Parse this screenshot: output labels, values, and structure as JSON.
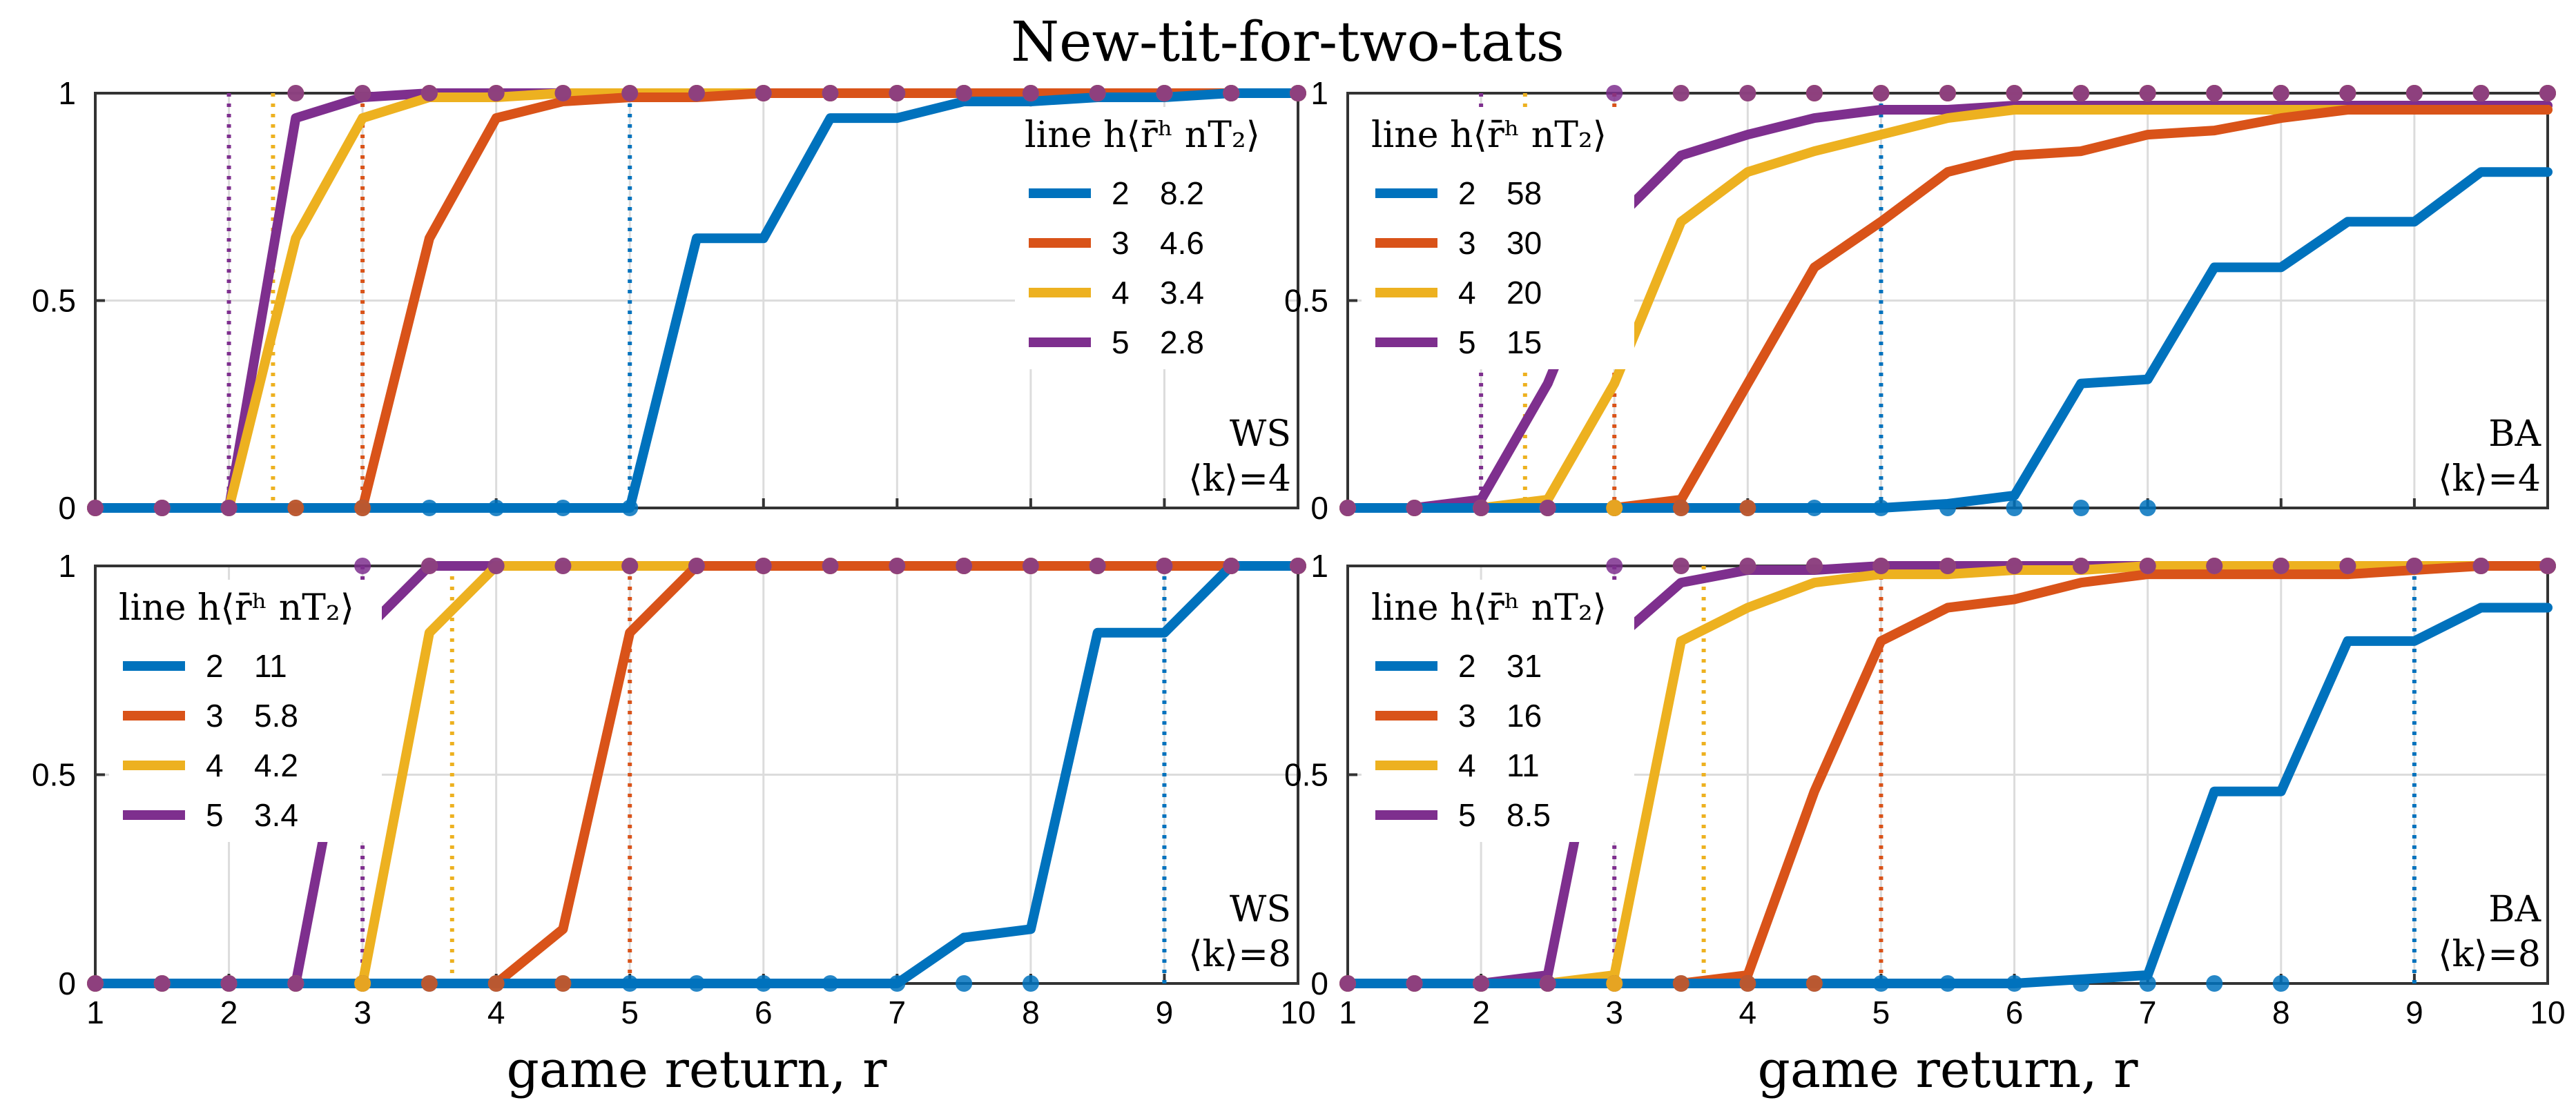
{
  "figure_title": "New-tit-for-two-tats",
  "colors": {
    "h2": "#0072BD",
    "h3": "#D95319",
    "h4": "#EDB120",
    "h5": "#7E2F8E",
    "grid": "#dcdcdc",
    "axis": "#333333"
  },
  "chart_data": [
    {
      "type": "line",
      "id": "ws_k4",
      "title": "",
      "xlabel": "",
      "ylabel": "",
      "xlim": [
        1,
        10
      ],
      "ylim": [
        0,
        1
      ],
      "xticks": [
        1,
        2,
        3,
        4,
        5,
        6,
        7,
        8,
        9,
        10
      ],
      "yticks": [
        0,
        0.5,
        1
      ],
      "ytick_labels": [
        "0",
        "0.5",
        "1"
      ],
      "show_xtick_labels": false,
      "legend_header": "line h⟨r̄ʰ nT₂⟩",
      "legend_position": "top-right",
      "annotation": [
        "WS",
        "⟨k⟩=4"
      ],
      "annotation_position": "bottom-right",
      "series": [
        {
          "name": "2",
          "h": 2,
          "value_label": "8.2",
          "vline": 5,
          "x": [
            1,
            1.5,
            2,
            2.5,
            3,
            3.5,
            4,
            4.5,
            5,
            5.5,
            6,
            6.5,
            7,
            7.5,
            8,
            8.5,
            9,
            9.5,
            10
          ],
          "y": [
            0,
            0,
            0,
            0,
            0,
            0,
            0,
            0,
            0,
            0.65,
            0.65,
            0.94,
            0.94,
            0.98,
            0.98,
            0.99,
            0.99,
            1,
            1
          ]
        },
        {
          "name": "3",
          "h": 3,
          "value_label": "4.6",
          "vline": 3,
          "x": [
            1,
            1.5,
            2,
            2.5,
            3,
            3.5,
            4,
            4.5,
            5,
            5.5,
            6,
            6.5,
            7,
            7.5,
            8,
            8.5,
            9,
            9.5,
            10
          ],
          "y": [
            0,
            0,
            0,
            0,
            0,
            0.65,
            0.94,
            0.98,
            0.99,
            0.99,
            1,
            1,
            1,
            1,
            1,
            1,
            1,
            1,
            1
          ]
        },
        {
          "name": "4",
          "h": 4,
          "value_label": "3.4",
          "vline": 2.33,
          "x": [
            1,
            1.5,
            2,
            2.5,
            3,
            3.5,
            4,
            4.5,
            5,
            5.5,
            6,
            6.5,
            7,
            7.5,
            8,
            8.5,
            9,
            9.5,
            10
          ],
          "y": [
            0,
            0,
            0,
            0.65,
            0.94,
            0.99,
            0.99,
            1,
            1,
            1,
            1,
            1,
            1,
            1,
            1,
            1,
            1,
            1,
            1
          ]
        },
        {
          "name": "5",
          "h": 5,
          "value_label": "2.8",
          "vline": 2,
          "x": [
            1,
            1.5,
            2,
            2.5,
            3,
            3.5,
            4,
            4.5,
            5,
            5.5,
            6,
            6.5,
            7,
            7.5,
            8,
            8.5,
            9,
            9.5,
            10
          ],
          "y": [
            0,
            0,
            0,
            0.94,
            0.99,
            1,
            1,
            1,
            1,
            1,
            1,
            1,
            1,
            1,
            1,
            1,
            1,
            1,
            1
          ]
        }
      ]
    },
    {
      "type": "line",
      "id": "ba_k4",
      "title": "",
      "xlabel": "",
      "ylabel": "",
      "xlim": [
        1,
        10
      ],
      "ylim": [
        0,
        1
      ],
      "xticks": [
        1,
        2,
        3,
        4,
        5,
        6,
        7,
        8,
        9,
        10
      ],
      "yticks": [
        0,
        0.5,
        1
      ],
      "ytick_labels": [
        "0",
        "0.5",
        "1"
      ],
      "show_xtick_labels": false,
      "legend_header": "line h⟨r̄ʰ nT₂⟩",
      "legend_position": "top-left",
      "annotation": [
        "BA",
        "⟨k⟩=4"
      ],
      "annotation_position": "bottom-right",
      "series": [
        {
          "name": "2",
          "h": 2,
          "value_label": "58",
          "vline": 5,
          "x": [
            1,
            1.5,
            2,
            2.5,
            3,
            3.5,
            4,
            4.5,
            5,
            5.5,
            6,
            6.5,
            7,
            7.5,
            8,
            8.5,
            9,
            9.5,
            10
          ],
          "y": [
            0,
            0,
            0,
            0,
            0,
            0,
            0,
            0,
            0,
            0.01,
            0.03,
            0.3,
            0.31,
            0.58,
            0.58,
            0.69,
            0.69,
            0.81,
            0.81
          ]
        },
        {
          "name": "3",
          "h": 3,
          "value_label": "30",
          "vline": 3,
          "x": [
            1,
            1.5,
            2,
            2.5,
            3,
            3.5,
            4,
            4.5,
            5,
            5.5,
            6,
            6.5,
            7,
            7.5,
            8,
            8.5,
            9,
            9.5,
            10
          ],
          "y": [
            0,
            0,
            0,
            0,
            0,
            0.02,
            0.3,
            0.58,
            0.69,
            0.81,
            0.85,
            0.86,
            0.9,
            0.91,
            0.94,
            0.96,
            0.96,
            0.96,
            0.96
          ]
        },
        {
          "name": "4",
          "h": 4,
          "value_label": "20",
          "vline": 2.33,
          "x": [
            1,
            1.5,
            2,
            2.5,
            3,
            3.5,
            4,
            4.5,
            5,
            5.5,
            6,
            6.5,
            7,
            7.5,
            8,
            8.5,
            9,
            9.5,
            10
          ],
          "y": [
            0,
            0,
            0,
            0.02,
            0.3,
            0.69,
            0.81,
            0.86,
            0.9,
            0.94,
            0.96,
            0.96,
            0.96,
            0.96,
            0.96,
            0.96,
            0.96,
            0.96,
            0.96
          ]
        },
        {
          "name": "5",
          "h": 5,
          "value_label": "15",
          "vline": 2,
          "x": [
            1,
            1.5,
            2,
            2.5,
            3,
            3.5,
            4,
            4.5,
            5,
            5.5,
            6,
            6.5,
            7,
            7.5,
            8,
            8.5,
            9,
            9.5,
            10
          ],
          "y": [
            0,
            0,
            0.02,
            0.3,
            0.69,
            0.85,
            0.9,
            0.94,
            0.96,
            0.96,
            0.97,
            0.97,
            0.97,
            0.97,
            0.97,
            0.97,
            0.97,
            0.97,
            0.97
          ]
        }
      ]
    },
    {
      "type": "line",
      "id": "ws_k8",
      "title": "",
      "xlabel": "game return, r",
      "ylabel": "",
      "xlim": [
        1,
        10
      ],
      "ylim": [
        0,
        1
      ],
      "xticks": [
        1,
        2,
        3,
        4,
        5,
        6,
        7,
        8,
        9,
        10
      ],
      "yticks": [
        0,
        0.5,
        1
      ],
      "ytick_labels": [
        "0",
        "0.5",
        "1"
      ],
      "show_xtick_labels": true,
      "legend_header": "line h⟨r̄ʰ nT₂⟩",
      "legend_position": "top-left",
      "annotation": [
        "WS",
        "⟨k⟩=8"
      ],
      "annotation_position": "bottom-right",
      "series": [
        {
          "name": "2",
          "h": 2,
          "value_label": "11",
          "vline": 9,
          "x": [
            1,
            1.5,
            2,
            2.5,
            3,
            3.5,
            4,
            4.5,
            5,
            5.5,
            6,
            6.5,
            7,
            7.5,
            8,
            8.5,
            9,
            9.5,
            10
          ],
          "y": [
            0,
            0,
            0,
            0,
            0,
            0,
            0,
            0,
            0,
            0,
            0,
            0,
            0,
            0.11,
            0.13,
            0.84,
            0.84,
            1,
            1
          ]
        },
        {
          "name": "3",
          "h": 3,
          "value_label": "5.8",
          "vline": 5,
          "x": [
            1,
            1.5,
            2,
            2.5,
            3,
            3.5,
            4,
            4.5,
            5,
            5.5,
            6,
            6.5,
            7,
            7.5,
            8,
            8.5,
            9,
            9.5,
            10
          ],
          "y": [
            0,
            0,
            0,
            0,
            0,
            0,
            0,
            0.13,
            0.84,
            1,
            1,
            1,
            1,
            1,
            1,
            1,
            1,
            1,
            1
          ]
        },
        {
          "name": "4",
          "h": 4,
          "value_label": "4.2",
          "vline": 3.67,
          "x": [
            1,
            1.5,
            2,
            2.5,
            3,
            3.5,
            4,
            4.5,
            5,
            5.5,
            6,
            6.5,
            7,
            7.5,
            8,
            8.5,
            9,
            9.5,
            10
          ],
          "y": [
            0,
            0,
            0,
            0,
            0,
            0.84,
            1,
            1,
            1,
            1,
            1,
            1,
            1,
            1,
            1,
            1,
            1,
            1,
            1
          ]
        },
        {
          "name": "5",
          "h": 5,
          "value_label": "3.4",
          "vline": 3,
          "x": [
            1,
            1.5,
            2,
            2.5,
            3,
            3.5,
            4,
            4.5,
            5,
            5.5,
            6,
            6.5,
            7,
            7.5,
            8,
            8.5,
            9,
            9.5,
            10
          ],
          "y": [
            0,
            0,
            0,
            0,
            0.84,
            1,
            1,
            1,
            1,
            1,
            1,
            1,
            1,
            1,
            1,
            1,
            1,
            1,
            1
          ]
        }
      ]
    },
    {
      "type": "line",
      "id": "ba_k8",
      "title": "",
      "xlabel": "game return, r",
      "ylabel": "",
      "xlim": [
        1,
        10
      ],
      "ylim": [
        0,
        1
      ],
      "xticks": [
        1,
        2,
        3,
        4,
        5,
        6,
        7,
        8,
        9,
        10
      ],
      "yticks": [
        0,
        0.5,
        1
      ],
      "ytick_labels": [
        "0",
        "0.5",
        "1"
      ],
      "show_xtick_labels": true,
      "legend_header": "line h⟨r̄ʰ nT₂⟩",
      "legend_position": "top-left",
      "annotation": [
        "BA",
        "⟨k⟩=8"
      ],
      "annotation_position": "bottom-right",
      "series": [
        {
          "name": "2",
          "h": 2,
          "value_label": "31",
          "vline": 9,
          "x": [
            1,
            1.5,
            2,
            2.5,
            3,
            3.5,
            4,
            4.5,
            5,
            5.5,
            6,
            6.5,
            7,
            7.5,
            8,
            8.5,
            9,
            9.5,
            10
          ],
          "y": [
            0,
            0,
            0,
            0,
            0,
            0,
            0,
            0,
            0,
            0,
            0,
            0.01,
            0.02,
            0.46,
            0.46,
            0.82,
            0.82,
            0.9,
            0.9
          ]
        },
        {
          "name": "3",
          "h": 3,
          "value_label": "16",
          "vline": 5,
          "x": [
            1,
            1.5,
            2,
            2.5,
            3,
            3.5,
            4,
            4.5,
            5,
            5.5,
            6,
            6.5,
            7,
            7.5,
            8,
            8.5,
            9,
            9.5,
            10
          ],
          "y": [
            0,
            0,
            0,
            0,
            0,
            0,
            0.02,
            0.46,
            0.82,
            0.9,
            0.92,
            0.96,
            0.98,
            0.98,
            0.98,
            0.98,
            0.99,
            1,
            1
          ]
        },
        {
          "name": "4",
          "h": 4,
          "value_label": "11",
          "vline": 3.67,
          "x": [
            1,
            1.5,
            2,
            2.5,
            3,
            3.5,
            4,
            4.5,
            5,
            5.5,
            6,
            6.5,
            7,
            7.5,
            8,
            8.5,
            9,
            9.5,
            10
          ],
          "y": [
            0,
            0,
            0,
            0,
            0.02,
            0.82,
            0.9,
            0.96,
            0.98,
            0.98,
            0.99,
            0.99,
            1,
            1,
            1,
            1,
            1,
            1,
            1
          ]
        },
        {
          "name": "5",
          "h": 5,
          "value_label": "8.5",
          "vline": 3,
          "x": [
            1,
            1.5,
            2,
            2.5,
            3,
            3.5,
            4,
            4.5,
            5,
            5.5,
            6,
            6.5,
            7,
            7.5,
            8,
            8.5,
            9,
            9.5,
            10
          ],
          "y": [
            0,
            0,
            0,
            0.02,
            0.82,
            0.96,
            0.99,
            0.99,
            1,
            1,
            1,
            1,
            1,
            1,
            1,
            1,
            1,
            1,
            1
          ]
        }
      ]
    }
  ]
}
